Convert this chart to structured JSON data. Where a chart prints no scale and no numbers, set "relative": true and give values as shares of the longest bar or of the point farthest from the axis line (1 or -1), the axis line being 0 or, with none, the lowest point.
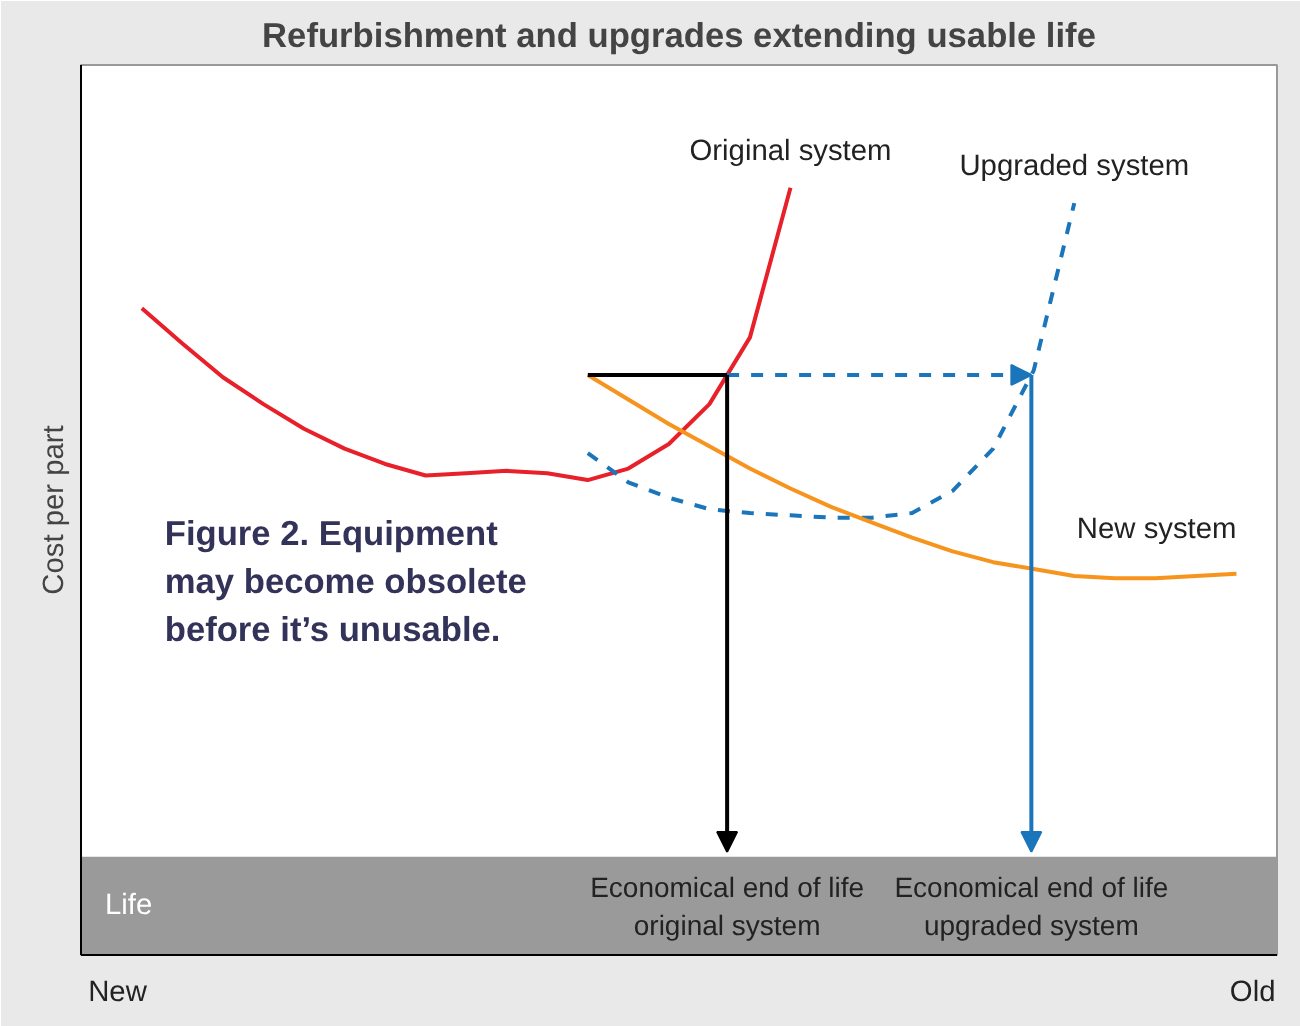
{
  "chart_data": {
    "type": "line",
    "title": "Refurbishment and upgrades extending usable life",
    "ylabel": "Cost per part",
    "relative": true,
    "categories": [
      null,
      null,
      null,
      null,
      null,
      null,
      null,
      null,
      null,
      null,
      null,
      null,
      null,
      null,
      null,
      null,
      null,
      null,
      null,
      null,
      null,
      null,
      null,
      null,
      null,
      null,
      null,
      null
    ],
    "series": [
      {
        "name": "Original system",
        "color": "#e8202a",
        "values": [
          0.843,
          0.797,
          0.753,
          0.718,
          0.686,
          0.66,
          0.64,
          0.625,
          0.628,
          0.631,
          0.628,
          0.619,
          0.634,
          0.666,
          0.718,
          0.805,
          1.0,
          null,
          null,
          null,
          null,
          null,
          null,
          null,
          null,
          null,
          null,
          null
        ]
      },
      {
        "name": "Upgraded system",
        "color": "#1a75bb",
        "line_style": "dashed",
        "values": [
          null,
          null,
          null,
          null,
          null,
          null,
          null,
          null,
          null,
          null,
          null,
          0.654,
          0.616,
          0.596,
          0.581,
          0.576,
          0.573,
          0.57,
          0.57,
          0.576,
          0.605,
          0.66,
          0.762,
          0.98,
          null,
          null,
          null,
          null
        ]
      },
      {
        "name": "New system",
        "color": "#f7941d",
        "values": [
          null,
          null,
          null,
          null,
          null,
          null,
          null,
          null,
          null,
          null,
          null,
          0.756,
          0.724,
          0.692,
          0.663,
          0.634,
          0.608,
          0.584,
          0.564,
          0.544,
          0.526,
          0.512,
          0.503,
          0.494,
          0.491,
          0.491,
          0.494,
          0.497
        ]
      }
    ],
    "ref_lines": [
      {
        "axis": "y",
        "value": 0.756,
        "color": "#000000"
      }
    ],
    "bands": [
      {
        "axis": "y",
        "from": 0,
        "to": 0.128,
        "label": "Life",
        "color": "#9a9a9a"
      }
    ],
    "annotations": [
      "Economical end of life\noriginal system",
      "Economical end of life\nupgraded system",
      "Figure 2. Equipment may become obsolete before it’s unusable.",
      "New",
      "Old"
    ]
  }
}
